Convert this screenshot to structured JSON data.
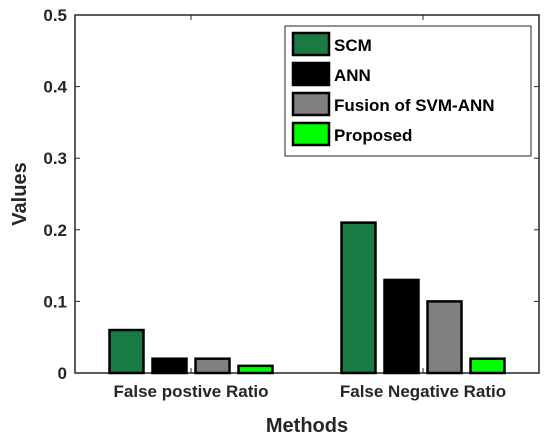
{
  "chart_data": {
    "type": "bar",
    "title": "",
    "xlabel": "Methods",
    "ylabel": "Values",
    "categories": [
      "False postive Ratio",
      "False Negative Ratio"
    ],
    "ylim": [
      0,
      0.5
    ],
    "yticks": [
      "0",
      "0.1",
      "0.2",
      "0.3",
      "0.4",
      "0.5"
    ],
    "grid": false,
    "legend_position": "top-right",
    "series": [
      {
        "name": "SCM",
        "color": "#1a7a43",
        "values": [
          0.06,
          0.21
        ]
      },
      {
        "name": "ANN",
        "color": "#000000",
        "values": [
          0.02,
          0.13
        ]
      },
      {
        "name": "Fusion of SVM-ANN",
        "color": "#808080",
        "values": [
          0.02,
          0.1
        ]
      },
      {
        "name": "Proposed",
        "color": "#00ff00",
        "values": [
          0.01,
          0.02
        ]
      }
    ]
  }
}
